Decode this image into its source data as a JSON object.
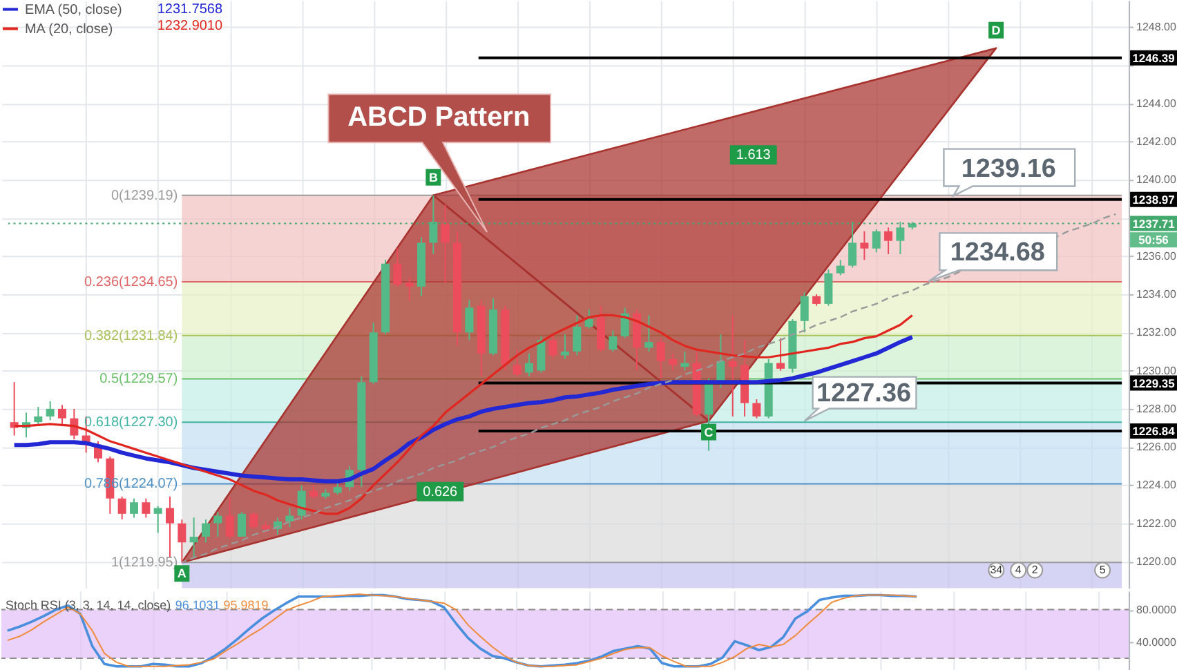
{
  "chart_data": [
    {
      "type": "candlestick",
      "categories": [
        null,
        null,
        null,
        null,
        null,
        null,
        null,
        null,
        null,
        null,
        null,
        null,
        null,
        null,
        null,
        null,
        null,
        null,
        null,
        null,
        null,
        null,
        null,
        null,
        null,
        null,
        null,
        null,
        null,
        null,
        null,
        null,
        null,
        null,
        null,
        null,
        null,
        null,
        null,
        null,
        null,
        null,
        null,
        null,
        null,
        null,
        null,
        null,
        null,
        null,
        null,
        null,
        null,
        null,
        null,
        null,
        null,
        null,
        null,
        null,
        null,
        null,
        null,
        null,
        null,
        null,
        null,
        null,
        null,
        null,
        null,
        null,
        null,
        null,
        null,
        null,
        null,
        null,
        null,
        null,
        null,
        null,
        null,
        null,
        null,
        null,
        null,
        null,
        null,
        null,
        null,
        null,
        null
      ],
      "ohlc": [
        [
          1227.3,
          1229.4,
          1226.6,
          1227.0
        ],
        [
          1227.0,
          1227.8,
          1226.5,
          1227.3
        ],
        [
          1227.3,
          1228.1,
          1227.1,
          1227.6
        ],
        [
          1227.6,
          1228.4,
          1227.4,
          1228.0
        ],
        [
          1228.0,
          1228.2,
          1227.2,
          1227.5
        ],
        [
          1227.5,
          1228.0,
          1226.4,
          1226.6
        ],
        [
          1226.6,
          1227.6,
          1225.7,
          1226.1
        ],
        [
          1226.1,
          1226.3,
          1225.2,
          1225.4
        ],
        [
          1225.4,
          1225.5,
          1222.5,
          1223.3
        ],
        [
          1223.3,
          1223.4,
          1222.2,
          1222.5
        ],
        [
          1222.5,
          1223.3,
          1222.3,
          1223.1
        ],
        [
          1223.1,
          1223.3,
          1222.3,
          1222.5
        ],
        [
          1222.5,
          1222.9,
          1221.5,
          1222.8
        ],
        [
          1222.8,
          1223.4,
          1220.2,
          1222.0
        ],
        [
          1222.0,
          1222.2,
          1219.95,
          1221.0
        ],
        [
          1221.0,
          1222.3,
          1220.2,
          1221.3
        ],
        [
          1221.3,
          1222.2,
          1221.0,
          1222.0
        ],
        [
          1222.0,
          1222.6,
          1221.3,
          1222.4
        ],
        [
          1222.4,
          1223.4,
          1221.2,
          1221.3
        ],
        [
          1221.3,
          1222.6,
          1221.3,
          1222.5
        ],
        [
          1222.5,
          1222.6,
          1221.7,
          1221.8
        ],
        [
          1221.9,
          1222.1,
          1221.5,
          1221.7
        ],
        [
          1221.7,
          1222.3,
          1221.4,
          1222.1
        ],
        [
          1222.1,
          1222.8,
          1221.8,
          1222.4
        ],
        [
          1222.4,
          1224.0,
          1222.2,
          1223.7
        ],
        [
          1223.7,
          1224.0,
          1223.3,
          1223.4
        ],
        [
          1223.4,
          1223.8,
          1223.3,
          1223.6
        ],
        [
          1223.6,
          1224.1,
          1223.5,
          1223.9
        ],
        [
          1223.9,
          1225.0,
          1223.7,
          1224.8
        ],
        [
          1224.8,
          1229.7,
          1223.9,
          1229.4
        ],
        [
          1229.4,
          1232.5,
          1229.3,
          1232.0
        ],
        [
          1232.0,
          1235.8,
          1231.9,
          1235.6
        ],
        [
          1235.6,
          1236.4,
          1234.4,
          1234.5
        ],
        [
          1234.6,
          1234.9,
          1233.7,
          1234.4
        ],
        [
          1234.4,
          1237.0,
          1233.9,
          1236.7
        ],
        [
          1236.7,
          1239.19,
          1236.1,
          1237.8
        ],
        [
          1237.7,
          1238.7,
          1234.6,
          1236.7
        ],
        [
          1236.7,
          1237.3,
          1231.3,
          1232.0
        ],
        [
          1232.0,
          1233.7,
          1231.6,
          1233.3
        ],
        [
          1233.4,
          1233.7,
          1229.7,
          1230.9
        ],
        [
          1230.9,
          1233.8,
          1230.8,
          1233.2
        ],
        [
          1233.2,
          1233.4,
          1230.0,
          1230.3
        ],
        [
          1230.3,
          1231.1,
          1229.7,
          1229.8
        ],
        [
          1229.9,
          1230.9,
          1229.7,
          1230.4
        ],
        [
          1230.0,
          1231.8,
          1229.9,
          1231.6
        ],
        [
          1231.6,
          1231.9,
          1230.6,
          1230.8
        ],
        [
          1230.8,
          1231.9,
          1230.6,
          1231.0
        ],
        [
          1231.0,
          1232.9,
          1230.8,
          1232.3
        ],
        [
          1232.3,
          1233.2,
          1232.2,
          1232.7
        ],
        [
          1232.8,
          1233.4,
          1231.0,
          1231.1
        ],
        [
          1231.1,
          1232.1,
          1231.0,
          1231.8
        ],
        [
          1231.8,
          1233.3,
          1231.7,
          1233.0
        ],
        [
          1233.0,
          1233.2,
          1230.0,
          1231.2
        ],
        [
          1231.2,
          1232.9,
          1231.0,
          1231.5
        ],
        [
          1231.5,
          1231.7,
          1229.6,
          1230.5
        ],
        [
          1230.6,
          1230.9,
          1230.0,
          1230.3
        ],
        [
          1230.2,
          1231.0,
          1230.0,
          1230.4
        ],
        [
          1230.4,
          1231.0,
          1227.6,
          1227.7
        ],
        [
          1227.7,
          1229.6,
          1225.8,
          1229.4
        ],
        [
          1229.3,
          1231.9,
          1229.1,
          1230.5
        ],
        [
          1230.5,
          1232.9,
          1227.6,
          1230.2
        ],
        [
          1230.3,
          1231.6,
          1227.6,
          1228.3
        ],
        [
          1228.3,
          1228.5,
          1227.5,
          1227.6
        ],
        [
          1227.6,
          1230.6,
          1227.5,
          1230.4
        ],
        [
          1230.4,
          1231.7,
          1230.0,
          1230.1
        ],
        [
          1230.1,
          1232.7,
          1229.9,
          1232.6
        ],
        [
          1232.6,
          1234.1,
          1232.0,
          1233.9
        ],
        [
          1233.9,
          1234.0,
          1233.4,
          1233.5
        ],
        [
          1233.5,
          1235.3,
          1233.4,
          1235.1
        ],
        [
          1235.1,
          1235.8,
          1235.0,
          1235.5
        ],
        [
          1235.5,
          1237.8,
          1235.4,
          1236.7
        ],
        [
          1236.7,
          1237.3,
          1235.8,
          1236.4
        ],
        [
          1236.4,
          1237.4,
          1236.2,
          1237.3
        ],
        [
          1237.3,
          1237.5,
          1236.1,
          1236.8
        ],
        [
          1236.8,
          1237.8,
          1236.1,
          1237.5
        ],
        [
          1237.5,
          1237.8,
          1237.4,
          1237.71
        ],
        null,
        null,
        null,
        null,
        null,
        null,
        null,
        null,
        null,
        null,
        null,
        null,
        null,
        null,
        null,
        null,
        null
      ],
      "colors": [
        "#eb4d5c",
        "#53b987",
        "#53b987",
        "#53b987",
        "#eb4d5c",
        "#eb4d5c",
        "#eb4d5c",
        "#eb4d5c",
        "#eb4d5c",
        "#eb4d5c",
        "#53b987",
        "#eb4d5c",
        "#53b987",
        "#eb4d5c",
        "#eb4d5c",
        "#53b987",
        "#53b987",
        "#53b987",
        "#eb4d5c",
        "#53b987",
        "#eb4d5c",
        "#eb4d5c",
        "#53b987",
        "#53b987",
        "#53b987",
        "#eb4d5c",
        "#53b987",
        "#53b987",
        "#53b987",
        "#53b987",
        "#53b987",
        "#53b987",
        "#eb4d5c",
        "#eb4d5c",
        "#53b987",
        "#53b987",
        "#eb4d5c",
        "#eb4d5c",
        "#53b987",
        "#eb4d5c",
        "#53b987",
        "#eb4d5c",
        "#eb4d5c",
        "#53b987",
        "#53b987",
        "#eb4d5c",
        "#53b987",
        "#53b987",
        "#53b987",
        "#eb4d5c",
        "#53b987",
        "#53b987",
        "#eb4d5c",
        "#53b987",
        "#eb4d5c",
        "#eb4d5c",
        "#53b987",
        "#eb4d5c",
        "#53b987",
        "#53b987",
        "#eb4d5c",
        "#eb4d5c",
        "#eb4d5c",
        "#53b987",
        "#eb4d5c",
        "#53b987",
        "#53b987",
        "#eb4d5c",
        "#53b987",
        "#53b987",
        "#53b987",
        "#eb4d5c",
        "#53b987",
        "#eb4d5c",
        "#53b987",
        "#53b987",
        null,
        null,
        null,
        null,
        null,
        null,
        null,
        null,
        null,
        null,
        null,
        null,
        null,
        null,
        null,
        null,
        null
      ],
      "series": [
        {
          "name": "EMA (50, close)",
          "type": "line",
          "color": "#2228d4",
          "values": [
            1226.1,
            1226.1,
            1226.15,
            1226.25,
            1226.25,
            1226.25,
            1226.2,
            1226.05,
            1225.9,
            1225.7,
            1225.55,
            1225.4,
            1225.3,
            1225.2,
            1225.05,
            1224.9,
            1224.8,
            1224.7,
            1224.6,
            1224.5,
            1224.45,
            1224.4,
            1224.35,
            1224.3,
            1224.3,
            1224.25,
            1224.2,
            1224.2,
            1224.3,
            1224.6,
            1224.85,
            1225.3,
            1225.7,
            1226.2,
            1226.5,
            1226.9,
            1227.2,
            1227.45,
            1227.6,
            1227.85,
            1228.0,
            1228.1,
            1228.2,
            1228.3,
            1228.35,
            1228.45,
            1228.6,
            1228.65,
            1228.75,
            1228.85,
            1229.0,
            1229.1,
            1229.2,
            1229.3,
            1229.35,
            1229.4,
            1229.4,
            1229.4,
            1229.4,
            1229.4,
            1229.4,
            1229.4,
            1229.4,
            1229.45,
            1229.5,
            1229.6,
            1229.75,
            1229.9,
            1230.1,
            1230.3,
            1230.5,
            1230.7,
            1230.9,
            1231.2,
            1231.5,
            1231.76,
            null,
            null,
            null,
            null,
            null,
            null,
            null,
            null,
            null,
            null,
            null,
            null,
            null,
            null,
            null,
            null,
            null
          ]
        },
        {
          "name": "MA (20, close)",
          "type": "line",
          "color": "#e0261e",
          "values": [
            1227.1,
            1227.1,
            1227.15,
            1227.2,
            1227.15,
            1227.1,
            1226.9,
            1226.6,
            1226.3,
            1226.1,
            1225.9,
            1225.7,
            1225.5,
            1225.3,
            1225.1,
            1224.9,
            1224.7,
            1224.5,
            1224.3,
            1224.0,
            1223.7,
            1223.5,
            1223.2,
            1223.0,
            1222.8,
            1222.65,
            1222.5,
            1222.5,
            1222.8,
            1223.3,
            1224.0,
            1224.6,
            1225.2,
            1225.9,
            1226.6,
            1227.1,
            1227.8,
            1228.3,
            1228.8,
            1229.3,
            1229.8,
            1230.3,
            1230.8,
            1231.2,
            1231.5,
            1231.9,
            1232.2,
            1232.5,
            1232.8,
            1232.9,
            1232.9,
            1232.8,
            1232.6,
            1232.3,
            1232.0,
            1231.6,
            1231.3,
            1231.1,
            1231.0,
            1230.9,
            1230.8,
            1230.75,
            1230.7,
            1230.7,
            1230.8,
            1230.9,
            1231.0,
            1231.1,
            1231.2,
            1231.4,
            1231.5,
            1231.7,
            1231.8,
            1232.1,
            1232.4,
            1232.9,
            null,
            null,
            null,
            null,
            null,
            null,
            null,
            null,
            null,
            null,
            null,
            null,
            null,
            null,
            null,
            null,
            null
          ]
        },
        {
          "type": "area",
          "color": "#a8322e",
          "values": [
            null,
            null,
            null,
            null,
            null,
            null,
            null,
            null,
            null,
            null,
            null,
            null,
            null,
            null,
            1219.95,
            null,
            null,
            null,
            null,
            null,
            null,
            null,
            null,
            null,
            null,
            null,
            null,
            null,
            null,
            null,
            null,
            null,
            null,
            null,
            null,
            1239.19,
            null,
            null,
            null,
            null,
            null,
            null,
            null,
            null,
            null,
            null,
            null,
            null,
            null,
            null,
            null,
            null,
            null,
            null,
            null,
            null,
            null,
            null,
            1227.36,
            null,
            null,
            null,
            null,
            null,
            null,
            null,
            null,
            null,
            null,
            null,
            null,
            null,
            null,
            null,
            null,
            null,
            null,
            null,
            null,
            null,
            null,
            null,
            1246.9,
            null,
            null,
            null,
            null,
            null,
            null,
            null,
            null,
            null,
            null
          ],
          "value_labels": [
            null,
            null,
            null,
            null,
            null,
            null,
            null,
            null,
            null,
            null,
            null,
            null,
            null,
            null,
            "A",
            null,
            null,
            null,
            null,
            null,
            null,
            null,
            null,
            null,
            null,
            null,
            null,
            null,
            null,
            null,
            null,
            null,
            null,
            null,
            null,
            "B",
            null,
            null,
            null,
            null,
            null,
            null,
            null,
            null,
            null,
            null,
            null,
            null,
            null,
            null,
            null,
            null,
            null,
            null,
            null,
            null,
            null,
            null,
            "C",
            null,
            null,
            null,
            null,
            null,
            null,
            null,
            null,
            null,
            null,
            null,
            null,
            null,
            null,
            null,
            null,
            null,
            null,
            null,
            null,
            null,
            null,
            null,
            "D",
            null,
            null,
            null,
            null,
            null,
            null,
            null,
            null,
            null,
            null
          ]
        },
        {
          "type": "line",
          "color": "#9a9a9a",
          "line_style": "dashed",
          "values": [
            null,
            null,
            null,
            null,
            null,
            null,
            null,
            null,
            null,
            null,
            null,
            null,
            null,
            null,
            1219.95,
            1220.2,
            1220.4,
            1220.7,
            1220.9,
            1221.1,
            1221.4,
            1221.6,
            1221.8,
            1222.1,
            1222.3,
            1222.5,
            1222.8,
            1223.0,
            1223.2,
            1223.5,
            1223.7,
            1223.9,
            1224.2,
            1224.4,
            1224.6,
            1224.9,
            1225.1,
            1225.3,
            1225.6,
            1225.8,
            1226.0,
            1226.3,
            1226.5,
            1226.7,
            1227.0,
            1227.2,
            1227.4,
            1227.7,
            1227.9,
            1228.1,
            1228.4,
            1228.6,
            1228.8,
            1229.1,
            1229.3,
            1229.5,
            1229.8,
            1230.0,
            1230.2,
            1230.5,
            1230.7,
            1230.9,
            1231.2,
            1231.4,
            1231.6,
            1231.9,
            1232.1,
            1232.4,
            1232.6,
            1232.8,
            1233.1,
            1233.3,
            1233.5,
            1233.8,
            1234.0,
            1234.2,
            1234.5,
            1234.7,
            1234.9,
            1235.2,
            null,
            null,
            null,
            null,
            null,
            null,
            null,
            1237.0,
            1237.3,
            1237.5,
            1237.7,
            1238.0,
            1238.2
          ]
        }
      ],
      "ylim": [
        1218.6,
        1249.4
      ],
      "yticks": [
        {
          "value": 1220,
          "label": "1220.00"
        },
        {
          "value": 1222,
          "label": "1222.00"
        },
        {
          "value": 1224,
          "label": "1224.00"
        },
        {
          "value": 1226,
          "label": "1226.00"
        },
        {
          "value": 1228,
          "label": "1228.00"
        },
        {
          "value": 1230,
          "label": "1230.00"
        },
        {
          "value": 1232,
          "label": "1232.00"
        },
        {
          "value": 1234,
          "label": "1234.00"
        },
        {
          "value": 1236,
          "label": "1236.00"
        },
        {
          "value": 1238,
          "label": null
        },
        {
          "value": 1240,
          "label": "1240.00"
        },
        {
          "value": 1242,
          "label": "1242.00"
        },
        {
          "value": 1244,
          "label": "1244.00"
        },
        {
          "value": 1246,
          "label": null
        },
        {
          "value": 1248,
          "label": "1248.00"
        }
      ],
      "bands": [
        {
          "axis": "y",
          "from": 1234.65,
          "to": 1239.19,
          "color": "#f6d3d3"
        },
        {
          "axis": "y",
          "from": 1231.84,
          "to": 1234.65,
          "color": "#eef5d6"
        },
        {
          "axis": "y",
          "from": 1229.57,
          "to": 1231.84,
          "color": "#dcf3dc"
        },
        {
          "axis": "y",
          "from": 1227.3,
          "to": 1229.57,
          "color": "#d5f3ee"
        },
        {
          "axis": "y",
          "from": 1224.07,
          "to": 1227.3,
          "color": "#d4e8f6"
        },
        {
          "axis": "y",
          "from": 1219.95,
          "to": 1224.07,
          "color": "#e5e5e5"
        },
        {
          "axis": "y",
          "from": 1218.6,
          "to": 1219.95,
          "color": "#d5d4f4"
        }
      ],
      "ref_lines": [
        {
          "axis": "y",
          "value": 1239.19,
          "label": "0(1239.19)",
          "color": "#9a9a9a"
        },
        {
          "axis": "y",
          "value": 1234.65,
          "label": "0.236(1234.65)",
          "color": "#e06666"
        },
        {
          "axis": "y",
          "value": 1231.84,
          "label": "0.382(1231.84)",
          "color": "#a9c15a"
        },
        {
          "axis": "y",
          "value": 1229.57,
          "label": "0.5(1229.57)",
          "color": "#6abf69"
        },
        {
          "axis": "y",
          "value": 1227.3,
          "label": "0.618(1227.30)",
          "color": "#40b3a2"
        },
        {
          "axis": "y",
          "value": 1224.07,
          "label": "0.786(1224.07)",
          "color": "#4d8fc4"
        },
        {
          "axis": "y",
          "value": 1219.95,
          "label": "1(1219.95)",
          "color": "#9a9a9a"
        },
        {
          "axis": "y",
          "value": 1246.39,
          "label": "1246.39",
          "color": "#000000"
        },
        {
          "axis": "y",
          "value": 1238.97,
          "label": "1238.97",
          "color": "#000000"
        },
        {
          "axis": "y",
          "value": 1237.71,
          "label": "1237.71",
          "color": "#43a86c",
          "line_style": "dotted"
        },
        {
          "axis": "y",
          "value": 1229.35,
          "label": "1229.35",
          "color": "#000000"
        },
        {
          "axis": "y",
          "value": 1226.84,
          "label": "1226.84",
          "color": "#000000"
        }
      ],
      "annotations": [
        "ABCD Pattern",
        "1.613",
        "0.626",
        {
          "text": "1239.16",
          "y": 1239.16
        },
        {
          "text": "1234.68",
          "y": 1234.68
        },
        {
          "text": "1227.36",
          "y": 1227.36
        },
        "1231.7568",
        "1232.9010",
        "50:56",
        "34",
        "4",
        "2",
        "5"
      ],
      "grid": true,
      "legend": "top left",
      "tick_labels": "y"
    },
    {
      "type": "line",
      "title": "Stoch RSI (3, 3, 14, 14, close)",
      "categories": [
        null,
        null,
        null,
        null,
        null,
        null,
        null,
        null,
        null,
        null,
        null,
        null,
        null,
        null,
        null,
        null,
        null,
        null,
        null,
        null,
        null,
        null,
        null,
        null,
        null,
        null,
        null,
        null,
        null,
        null,
        null,
        null,
        null,
        null,
        null,
        null,
        null,
        null,
        null,
        null,
        null,
        null,
        null,
        null,
        null,
        null,
        null,
        null,
        null,
        null,
        null,
        null,
        null,
        null,
        null,
        null,
        null,
        null,
        null,
        null,
        null,
        null,
        null,
        null,
        null,
        null,
        null,
        null,
        null,
        null,
        null,
        null,
        null,
        null,
        null,
        null,
        null,
        null,
        null,
        null,
        null,
        null,
        null,
        null,
        null,
        null,
        null,
        null,
        null,
        null,
        null,
        null,
        null
      ],
      "series": [
        {
          "color": "#4a8fdd",
          "values": [
            54,
            59,
            65,
            72,
            80,
            85,
            75,
            35,
            13,
            10,
            10,
            10,
            13,
            12,
            10,
            10,
            14,
            22,
            32,
            44,
            57,
            69,
            79,
            88,
            96,
            96,
            96,
            96,
            97,
            97,
            98,
            98,
            96,
            93,
            92,
            90,
            83,
            63,
            45,
            32,
            23,
            20,
            15,
            11,
            10,
            11,
            12,
            14,
            17,
            22,
            29,
            32,
            35,
            32,
            14,
            10,
            10,
            10,
            13,
            21,
            41,
            36,
            30,
            34,
            46,
            69,
            78,
            92,
            95,
            97,
            97,
            98,
            98,
            97,
            97,
            96,
            null,
            null,
            null,
            null,
            null,
            null,
            null,
            null,
            null,
            null,
            null,
            null,
            null,
            null,
            null,
            null,
            null
          ]
        },
        {
          "color": "#ef8b3c",
          "values": [
            42,
            47,
            55,
            65,
            74,
            83,
            75,
            54,
            26,
            15,
            10,
            10,
            10,
            10,
            11,
            12,
            15,
            19,
            29,
            38,
            48,
            57,
            68,
            79,
            85,
            90,
            96,
            97,
            98,
            99,
            98,
            97,
            96,
            94,
            92,
            90,
            88,
            80,
            61,
            47,
            34,
            23,
            15,
            11,
            10,
            10,
            11,
            12,
            16,
            20,
            26,
            31,
            33,
            33,
            23,
            16,
            10,
            10,
            10,
            15,
            22,
            32,
            37,
            34,
            37,
            48,
            62,
            75,
            89,
            94,
            97,
            98,
            98,
            98,
            97,
            96,
            null,
            null,
            null,
            null,
            null,
            null,
            null,
            null,
            null,
            null,
            null,
            null,
            null,
            null,
            null,
            null,
            null
          ]
        }
      ],
      "ylim": [
        6,
        103
      ],
      "yticks": [
        {
          "value": 80,
          "label": "80.0000"
        },
        {
          "value": 40,
          "label": "40.0000"
        }
      ],
      "bands": [
        {
          "axis": "y",
          "from": 20,
          "to": 80,
          "color": "#ebd2fa"
        }
      ],
      "ref_lines": [
        {
          "axis": "y",
          "value": 80,
          "color": "#8c8c8c",
          "line_style": "dashed"
        },
        {
          "axis": "y",
          "value": 20,
          "color": "#8c8c8c",
          "line_style": "dashed"
        }
      ],
      "annotations": [
        "96.1031",
        "95.9819"
      ],
      "grid": "x",
      "tick_labels": "y"
    }
  ]
}
